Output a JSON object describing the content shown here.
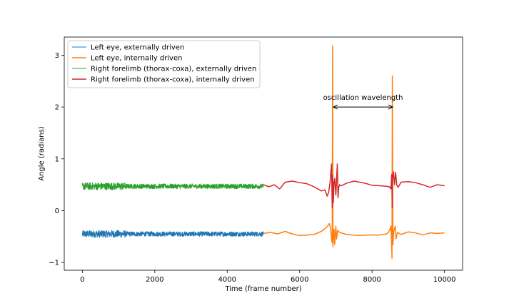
{
  "chart_data": {
    "type": "line",
    "title": "",
    "xlabel": "Time (frame number)",
    "ylabel": "Angle (radians)",
    "xlim": [
      -500,
      10500
    ],
    "ylim": [
      -1.15,
      3.35
    ],
    "xticks": [
      0,
      2000,
      4000,
      6000,
      8000,
      10000
    ],
    "yticks": [
      -1,
      0,
      1,
      2,
      3
    ],
    "xtick_labels": [
      "0",
      "2000",
      "4000",
      "6000",
      "8000",
      "10000"
    ],
    "ytick_labels": [
      "−1",
      "0",
      "1",
      "2",
      "3"
    ],
    "grid": false,
    "legend_position": "top-left",
    "series": [
      {
        "name": "Left eye, externally driven",
        "color": "#1f77b4",
        "noise": true,
        "x": [
          0,
          5000
        ],
        "y": [
          -0.45,
          -0.45
        ]
      },
      {
        "name": "Left eye, internally driven",
        "color": "#ff7f0e",
        "noise": false,
        "x": [
          5000,
          5200,
          5400,
          5600,
          5800,
          6000,
          6200,
          6400,
          6600,
          6750,
          6820,
          6860,
          6880,
          6900,
          6910,
          6920,
          6935,
          6950,
          6970,
          7000,
          7020,
          7050,
          7100,
          7300,
          7600,
          7900,
          8200,
          8400,
          8450,
          8500,
          8520,
          8540,
          8550,
          8560,
          8575,
          8600,
          8640,
          8660,
          8700,
          8800,
          9000,
          9200,
          9400,
          9600,
          9800,
          10000
        ],
        "y": [
          -0.44,
          -0.42,
          -0.45,
          -0.4,
          -0.45,
          -0.48,
          -0.47,
          -0.46,
          -0.4,
          -0.32,
          -0.25,
          -0.36,
          -0.56,
          -0.62,
          3.18,
          -0.7,
          -0.52,
          -0.36,
          -0.65,
          -0.3,
          -0.55,
          -0.38,
          -0.42,
          -0.46,
          -0.48,
          -0.47,
          -0.47,
          -0.45,
          -0.42,
          -0.35,
          -0.3,
          -0.62,
          -0.92,
          2.6,
          -0.66,
          -0.4,
          -0.3,
          -0.55,
          -0.42,
          -0.46,
          -0.41,
          -0.43,
          -0.47,
          -0.43,
          -0.44,
          -0.43
        ]
      },
      {
        "name": "Right forelimb (thorax-coxa), externally driven",
        "color": "#2ca02c",
        "noise": true,
        "x": [
          0,
          5000
        ],
        "y": [
          0.47,
          0.47
        ]
      },
      {
        "name": "Right forelimb (thorax-coxa), internally driven",
        "color": "#d62728",
        "noise": false,
        "x": [
          5000,
          5150,
          5300,
          5450,
          5600,
          5800,
          6000,
          6200,
          6400,
          6600,
          6700,
          6760,
          6800,
          6840,
          6880,
          6900,
          6915,
          6930,
          6950,
          6970,
          7000,
          7040,
          7060,
          7080,
          7100,
          7150,
          7300,
          7500,
          7800,
          8000,
          8200,
          8400,
          8480,
          8520,
          8545,
          8555,
          8565,
          8590,
          8620,
          8650,
          8680,
          8720,
          8800,
          9000,
          9200,
          9400,
          9600,
          9800,
          10000
        ],
        "y": [
          0.5,
          0.46,
          0.5,
          0.42,
          0.55,
          0.57,
          0.54,
          0.52,
          0.46,
          0.38,
          0.4,
          0.28,
          0.35,
          0.55,
          0.9,
          0.05,
          0.68,
          0.15,
          0.55,
          0.62,
          0.3,
          0.9,
          0.25,
          0.45,
          0.5,
          0.48,
          0.53,
          0.57,
          0.53,
          0.49,
          0.48,
          0.47,
          0.46,
          0.42,
          0.7,
          0.05,
          0.62,
          0.75,
          0.5,
          0.74,
          0.5,
          0.45,
          0.55,
          0.56,
          0.54,
          0.5,
          0.45,
          0.5,
          0.48
        ]
      }
    ],
    "annotation": {
      "text": "oscillation wavelength",
      "x1": 6930,
      "x2": 8570,
      "y": 2.0,
      "text_x": 7750,
      "text_y": 2.18
    }
  }
}
